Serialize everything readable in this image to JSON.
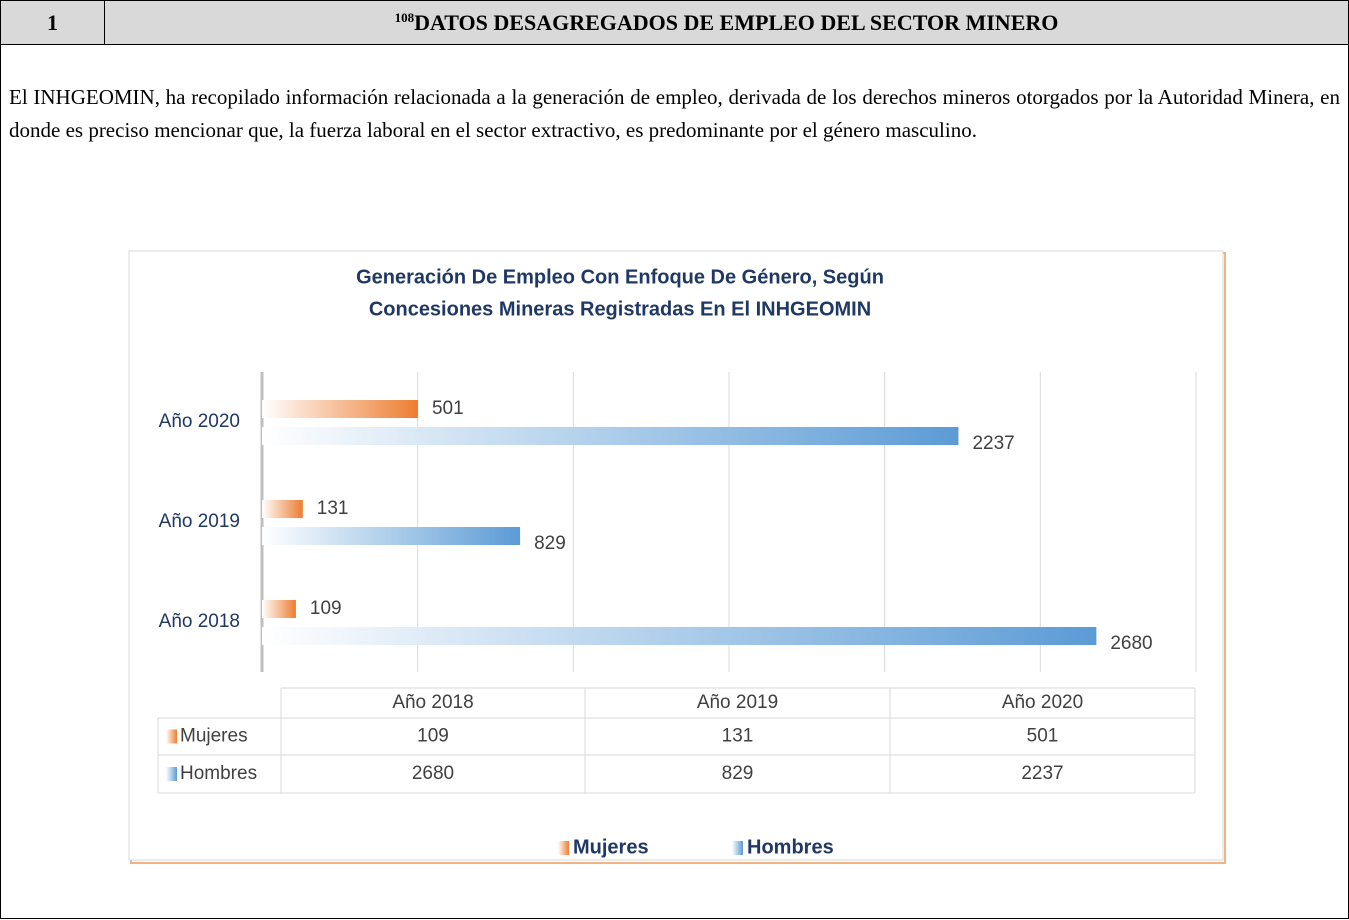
{
  "header": {
    "number": "1",
    "footnote": "108",
    "title": "DATOS DESAGREGADOS DE EMPLEO DEL SECTOR MINERO"
  },
  "paragraph": "El INHGEOMIN, ha recopilado información relacionada a la generación de empleo, derivada de los derechos mineros otorgados por la Autoridad Minera, en donde es preciso mencionar que, la fuerza laboral en el sector extractivo, es predominante por el género masculino.",
  "chart_data": {
    "type": "barh",
    "title": [
      "Generación De Empleo Con Enfoque De Género, Según",
      "Concesiones Mineras Registradas En El INHGEOMIN"
    ],
    "categories": [
      "Año 2018",
      "Año 2019",
      "Año 2020"
    ],
    "series": [
      {
        "name": "Mujeres",
        "color": "#ed7d31",
        "values": [
          109,
          131,
          501
        ]
      },
      {
        "name": "Hombres",
        "color": "#5b9bd5",
        "values": [
          2680,
          829,
          2237
        ]
      }
    ],
    "xlim": [
      0,
      3000
    ],
    "xticks": [
      0,
      500,
      1000,
      1500,
      2000,
      2500,
      3000
    ],
    "grid": true,
    "data_table": true,
    "legend": "bottom"
  }
}
